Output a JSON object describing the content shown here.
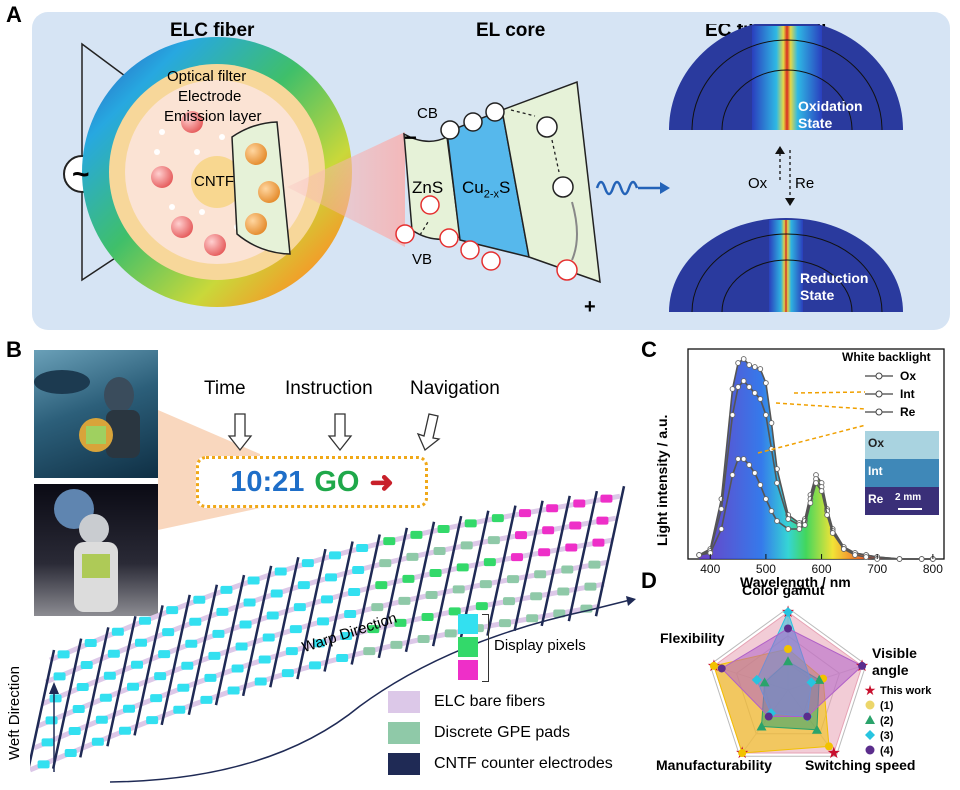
{
  "panels": {
    "a": "A",
    "b": "B",
    "c": "C",
    "d": "D"
  },
  "panel_a": {
    "fiber_title": "ELC fiber",
    "core_title": "EL core",
    "shell_title": "EC filter shell",
    "layer_filter": "Optical filter",
    "layer_electrode": "Electrode",
    "layer_emission": "Emission layer",
    "cntf": "CNTF",
    "ac_symbol": "~",
    "cb": "CB",
    "vb": "VB",
    "zns": "ZnS",
    "cu": "Cu",
    "cu_sub": "2-x",
    "cu_s": "S",
    "minus_sign": "−",
    "plus_sign": "+",
    "electron": "⊖",
    "hole": "⊕",
    "oxidation_1": "Oxidation",
    "oxidation_2": "State",
    "reduction_1": "Reduction",
    "reduction_2": "State",
    "ox": "Ox",
    "re": "Re"
  },
  "panel_b": {
    "time": "Time",
    "instruction": "Instruction",
    "navigation": "Navigation",
    "clock": "10:21",
    "go": "GO",
    "arrow": "➜",
    "warp": "Warp Direction",
    "weft": "Weft Direction",
    "display_pixels": "Display pixels",
    "legend": [
      {
        "label": "ELC bare fibers",
        "color": "#dcc8e8"
      },
      {
        "label": "Discrete GPE pads",
        "color": "#8fc9a8"
      },
      {
        "label": "CNTF counter electrodes",
        "color": "#1f2a55"
      }
    ],
    "pixel_colors": [
      "#33e0f0",
      "#33d96a",
      "#ee2fc8"
    ]
  },
  "chart_data": [
    {
      "type": "line",
      "panel": "C",
      "xlabel": "Wavelength / nm",
      "ylabel": "Light intensity / a.u.",
      "xticks": [
        400,
        500,
        600,
        700,
        800
      ],
      "xlim": [
        360,
        820
      ],
      "ylim": [
        0,
        1.05
      ],
      "legend_title": "White backlight",
      "series": [
        {
          "name": "Ox",
          "x": [
            380,
            400,
            420,
            440,
            450,
            460,
            470,
            480,
            490,
            500,
            510,
            520,
            540,
            560,
            570,
            580,
            590,
            600,
            610,
            620,
            640,
            660,
            680,
            700,
            740,
            780,
            800
          ],
          "values": [
            0.02,
            0.05,
            0.3,
            0.85,
            0.98,
            1.0,
            0.97,
            0.96,
            0.95,
            0.88,
            0.68,
            0.45,
            0.22,
            0.18,
            0.2,
            0.32,
            0.42,
            0.38,
            0.25,
            0.15,
            0.06,
            0.03,
            0.02,
            0.01,
            0.0,
            0.0,
            0.0
          ]
        },
        {
          "name": "Int",
          "x": [
            380,
            400,
            420,
            440,
            450,
            460,
            470,
            480,
            490,
            500,
            510,
            520,
            540,
            560,
            570,
            580,
            590,
            600,
            610,
            620,
            640,
            660,
            680,
            700,
            740,
            780,
            800
          ],
          "values": [
            0.02,
            0.04,
            0.25,
            0.72,
            0.86,
            0.89,
            0.86,
            0.83,
            0.8,
            0.72,
            0.55,
            0.38,
            0.2,
            0.17,
            0.19,
            0.3,
            0.4,
            0.36,
            0.24,
            0.14,
            0.05,
            0.03,
            0.02,
            0.01,
            0.0,
            0.0,
            0.0
          ]
        },
        {
          "name": "Re",
          "x": [
            380,
            400,
            420,
            440,
            450,
            460,
            470,
            480,
            490,
            500,
            510,
            520,
            540,
            560,
            570,
            580,
            590,
            600,
            610,
            620,
            640,
            660,
            680,
            700,
            740,
            780,
            800
          ],
          "values": [
            0.02,
            0.03,
            0.15,
            0.42,
            0.5,
            0.5,
            0.47,
            0.43,
            0.37,
            0.3,
            0.24,
            0.19,
            0.15,
            0.15,
            0.17,
            0.28,
            0.38,
            0.34,
            0.22,
            0.13,
            0.05,
            0.02,
            0.01,
            0.0,
            0.0,
            0.0,
            0.0
          ]
        }
      ],
      "inset": {
        "rows": [
          "Ox",
          "Int",
          "Re"
        ],
        "scale": "2 mm"
      }
    },
    {
      "type": "radar",
      "panel": "D",
      "axes": [
        "Color gamut",
        "Visible angle",
        "Switching speed",
        "Manufacturability",
        "Flexibility"
      ],
      "series": [
        {
          "name": "This work",
          "values": [
            0.95,
            0.95,
            0.95,
            0.95,
            0.95
          ],
          "color": "#e7a3b5",
          "marker": "#c8102e"
        },
        {
          "name": "(1)",
          "values": [
            0.5,
            0.45,
            0.85,
            0.95,
            0.95
          ],
          "color": "#f2c200",
          "marker": "#f2c200"
        },
        {
          "name": "(2)",
          "values": [
            0.35,
            0.4,
            0.6,
            0.55,
            0.3
          ],
          "color": "#2aa36b",
          "marker": "#2aa36b"
        },
        {
          "name": "(3)",
          "values": [
            0.95,
            0.3,
            0.4,
            0.35,
            0.4
          ],
          "color": "#27c4e0",
          "marker": "#27c4e0"
        },
        {
          "name": "(4)",
          "values": [
            0.75,
            0.95,
            0.4,
            0.4,
            0.85
          ],
          "color": "#b060c8",
          "marker": "#5b2d8c"
        }
      ]
    }
  ]
}
